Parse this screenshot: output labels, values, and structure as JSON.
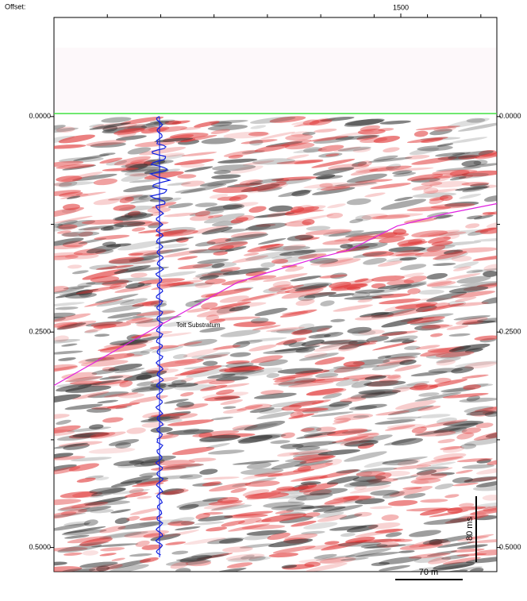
{
  "chart_data": {
    "type": "seismic",
    "x_label": "Offset:",
    "xlim": [
      850,
      1680
    ],
    "xticks": [
      1500
    ],
    "xminor": [
      950,
      1050,
      1150,
      1250,
      1350,
      1450,
      1550,
      1650
    ],
    "ylim": [
      -0.115,
      0.528
    ],
    "yticks": [
      {
        "value": 0,
        "label": "0.0000"
      },
      {
        "value": 0.25,
        "label": "0.2500"
      },
      {
        "value": 0.5,
        "label": "0.5000"
      }
    ],
    "yminor": [
      0.125,
      0.375
    ],
    "series": [
      {
        "name": "Toit Substratum",
        "color": "#e020e0",
        "x": [
          850,
          1046,
          1195,
          1240,
          1344,
          1403,
          1493,
          1582,
          1680
        ],
        "values": [
          0.312,
          0.243,
          0.192,
          0.183,
          0.164,
          0.155,
          0.127,
          0.113,
          0.101
        ]
      }
    ],
    "scale_bars": {
      "time": "80 ms",
      "distance": "70 m"
    }
  }
}
